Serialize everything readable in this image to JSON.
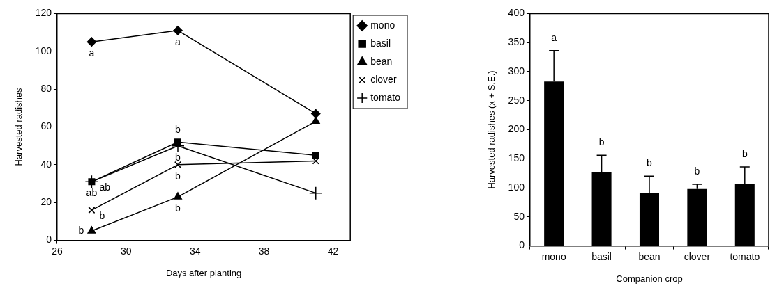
{
  "chart_data": [
    {
      "type": "line",
      "xlabel": "Days after planting",
      "ylabel": "Harvested radishes",
      "x": [
        28,
        33,
        41
      ],
      "xlim": [
        26,
        43
      ],
      "xticks": [
        26,
        30,
        34,
        38,
        42
      ],
      "ylim": [
        0,
        120
      ],
      "yticks": [
        0,
        20,
        40,
        60,
        80,
        100,
        120
      ],
      "grid": false,
      "legend": "right",
      "line_style": "solid",
      "series": [
        {
          "name": "mono",
          "color": "#000000",
          "marker": "diamond",
          "values": [
            105,
            111,
            67
          ]
        },
        {
          "name": "basil",
          "color": "#000000",
          "marker": "square",
          "values": [
            31,
            52,
            45
          ]
        },
        {
          "name": "bean",
          "color": "#000000",
          "marker": "triangle",
          "values": [
            5,
            23,
            63
          ]
        },
        {
          "name": "clover",
          "color": "#000000",
          "marker": "cross",
          "values": [
            16,
            40,
            42
          ]
        },
        {
          "name": "tomato",
          "color": "#000000",
          "marker": "plus",
          "values": [
            31,
            50,
            25
          ]
        }
      ],
      "annotations": [
        {
          "text": "a",
          "x": 28,
          "y": 105
        },
        {
          "text": "a",
          "x": 33,
          "y": 111
        },
        {
          "text": "ab",
          "x": 28,
          "y": 31
        },
        {
          "text": "ab",
          "x": 28,
          "y": 31
        },
        {
          "text": "b",
          "x": 33,
          "y": 52
        },
        {
          "text": "b",
          "x": 33,
          "y": 50
        },
        {
          "text": "b",
          "x": 33,
          "y": 40
        },
        {
          "text": "b",
          "x": 28,
          "y": 16
        },
        {
          "text": "b",
          "x": 33,
          "y": 23
        },
        {
          "text": "b",
          "x": 28,
          "y": 5
        }
      ]
    },
    {
      "type": "bar",
      "xlabel": "Companion crop",
      "ylabel": "Harvested radishes (x + S.E.)",
      "categories": [
        "mono",
        "basil",
        "bean",
        "clover",
        "tomato"
      ],
      "values": [
        283,
        127,
        91,
        98,
        106
      ],
      "color": "#000000",
      "errors": [
        [
          283,
          336
        ],
        [
          127,
          156
        ],
        [
          91,
          120
        ],
        [
          98,
          106
        ],
        [
          106,
          136
        ]
      ],
      "ylim": [
        0,
        400
      ],
      "yticks": [
        0,
        50,
        100,
        150,
        200,
        250,
        300,
        350,
        400
      ],
      "grid": false,
      "annotations": [
        {
          "text": "a",
          "x": "mono",
          "y": 336
        },
        {
          "text": "b",
          "x": "basil",
          "y": 156
        },
        {
          "text": "b",
          "x": "bean",
          "y": 120
        },
        {
          "text": "b",
          "x": "clover",
          "y": 106
        },
        {
          "text": "b",
          "x": "tomato",
          "y": 136
        }
      ]
    }
  ]
}
